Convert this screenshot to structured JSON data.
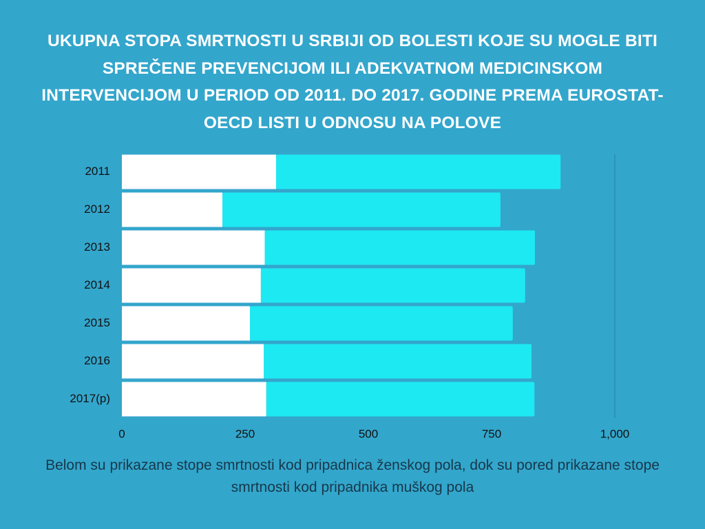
{
  "chart_data": {
    "type": "stacked-barh",
    "title": "UKUPNA STOPA SMRTNOSTI U SRBIJI OD BOLESTI KOJE SU MOGLE BITI SPREČENE PREVENCIJOM ILI ADEKVATNOM MEDICINSKOM INTERVENCIJOM U PERIOD OD 2011. DO 2017. GODINE PREMA EUROSTAT-OECD LISTI U ODNOSU NA POLOVE",
    "categories": [
      "2011",
      "2012",
      "2013",
      "2014",
      "2015",
      "2016",
      "2017(p)"
    ],
    "series": [
      {
        "color": "#ffffff",
        "values": [
          313,
          204,
          290,
          282,
          260,
          288,
          293
        ]
      },
      {
        "color": "#1de9f2",
        "values": [
          577,
          564,
          548,
          536,
          533,
          543,
          544
        ]
      }
    ],
    "xlim": [
      0,
      1000
    ],
    "xticks": [
      0,
      250,
      500,
      750,
      {
        "value": 1000,
        "label": "1,000"
      }
    ],
    "note": "Belom su prikazane stope smrtnosti kod pripadnica ženskog pola, dok su pored prikazane stope smrtnosti kod pripadnika muškog pola"
  }
}
